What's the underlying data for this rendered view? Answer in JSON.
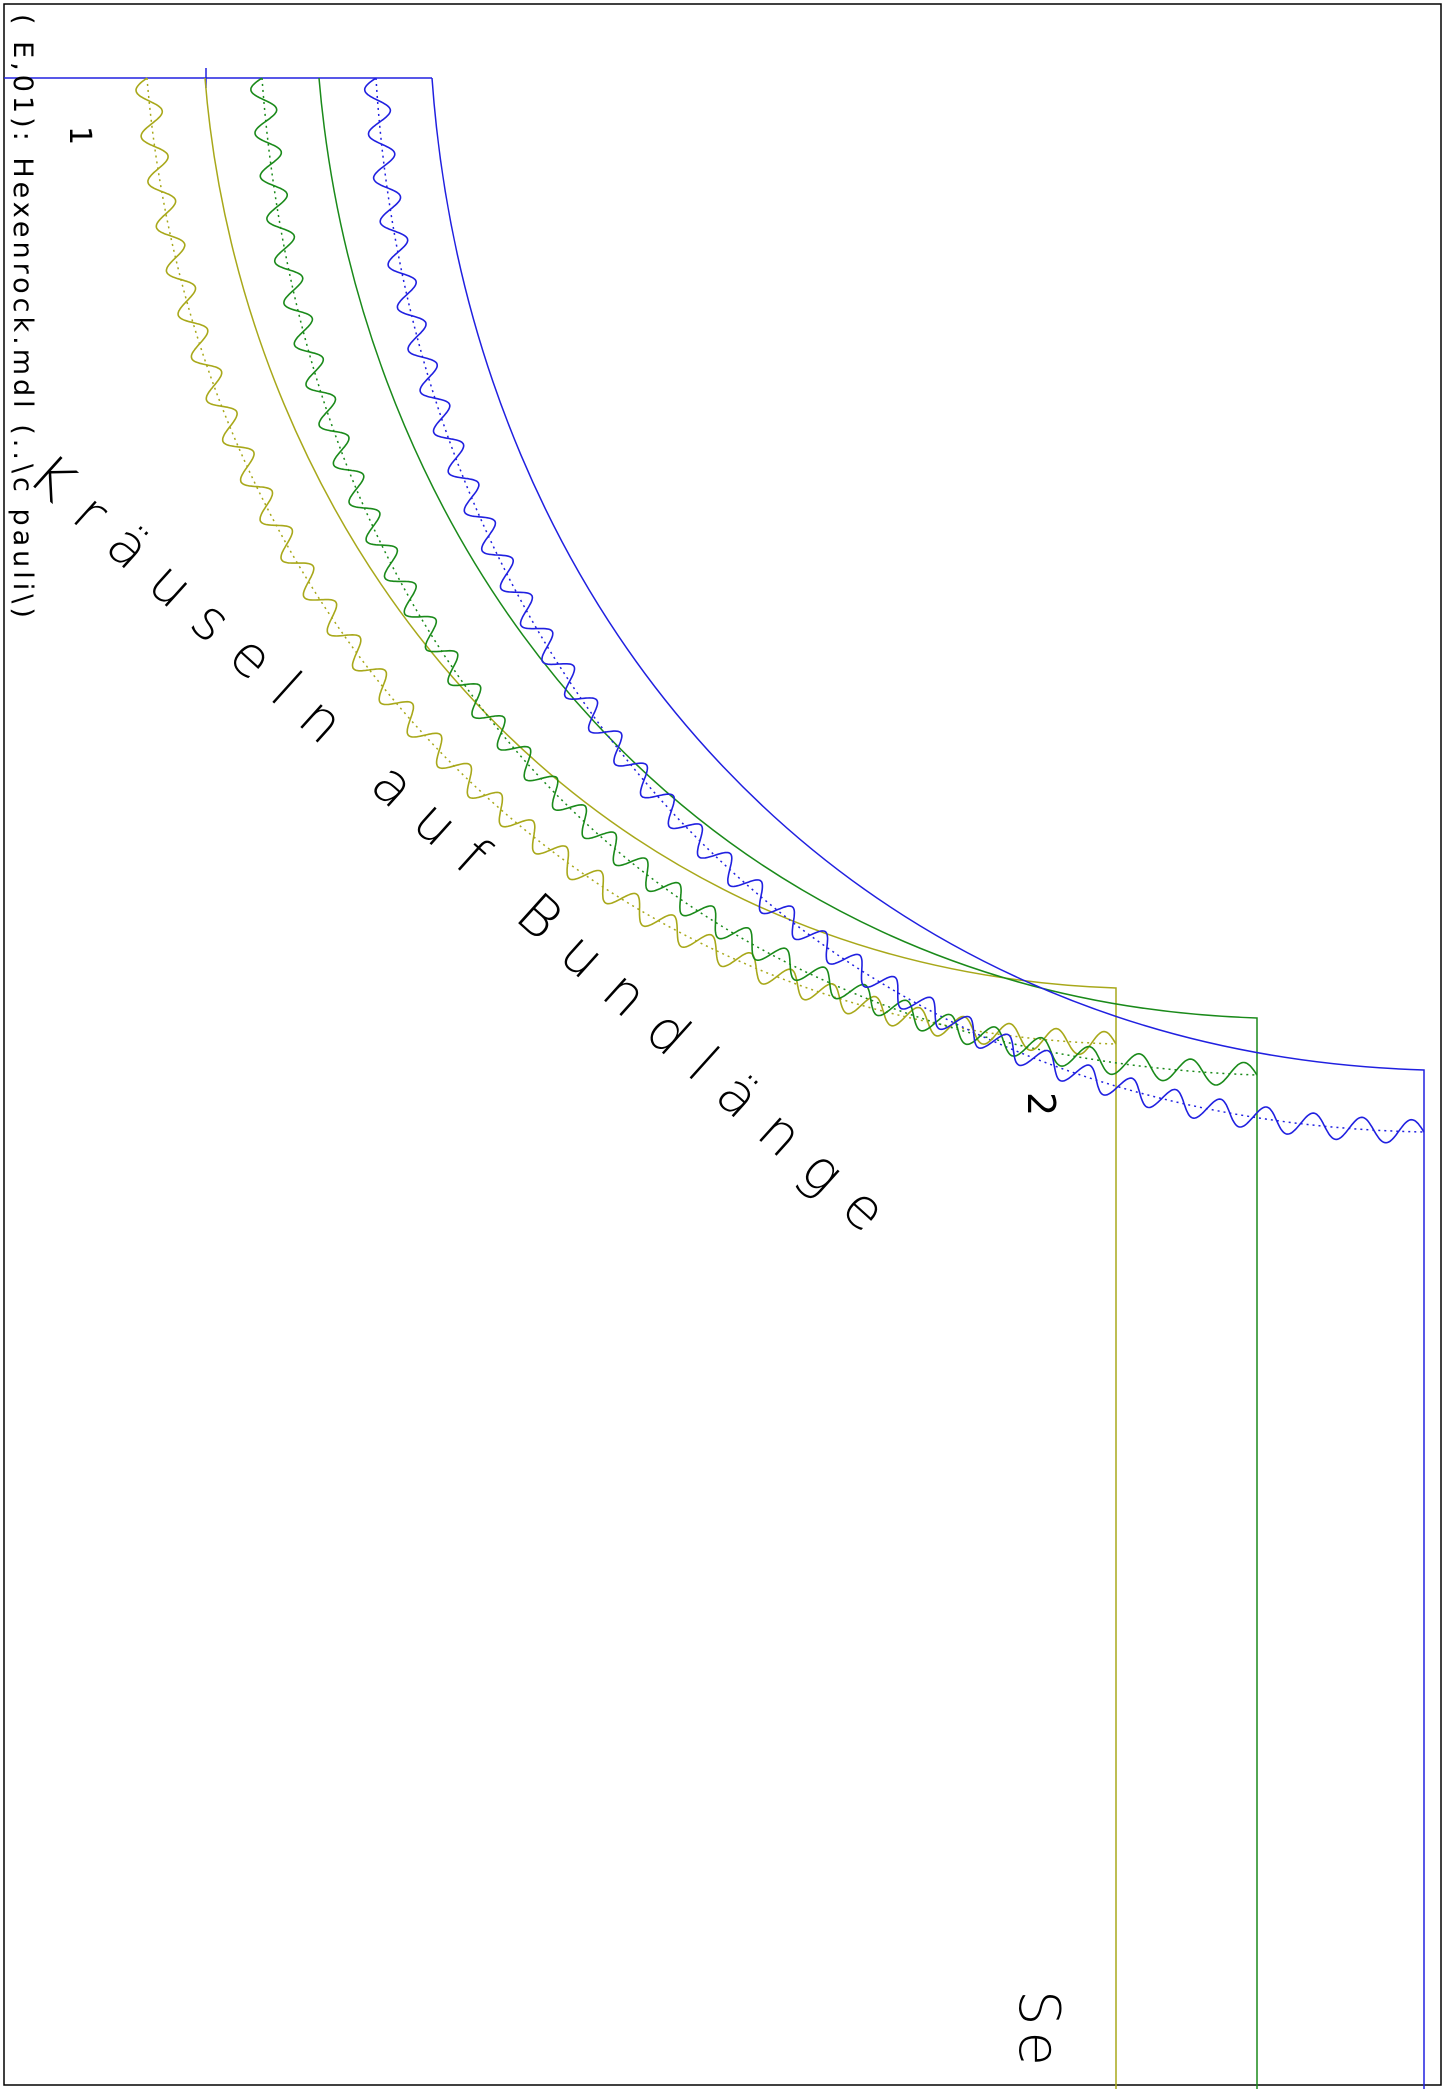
{
  "header": {
    "file_label": "( E,01): Hexenrock.mdl (..\\c pauli\\)"
  },
  "annotations": {
    "instruction": "Kräuseln auf Bundlänge",
    "point_1": "1",
    "point_2": "2",
    "partial_label": "Se"
  },
  "colors": {
    "frame": "#000000",
    "size_small": "#a8a81a",
    "size_medium": "#1a8a1a",
    "size_large": "#2020e0"
  }
}
